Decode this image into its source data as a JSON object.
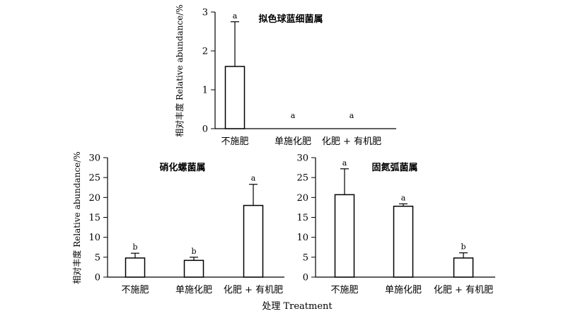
{
  "shared": {
    "ylabel": "相对丰度 Relative abundance/%",
    "xlabel": "处理 Treatment"
  },
  "chart_data": [
    {
      "type": "bar",
      "title": "拟色球蓝细菌属",
      "categories": [
        "不施肥",
        "单施化肥",
        "化肥 + 有机肥"
      ],
      "values": [
        1.6,
        0,
        0
      ],
      "errors": [
        1.15,
        0,
        0
      ],
      "significance": [
        "a",
        "a",
        "a"
      ],
      "ylim": [
        0,
        3
      ],
      "yticks": [
        "0",
        "1",
        "2",
        "3"
      ],
      "ylabel": "相对丰度 Relative abundance/%",
      "xlabel": ""
    },
    {
      "type": "bar",
      "title": "硝化螺菌属",
      "categories": [
        "不施肥",
        "单施化肥",
        "化肥 + 有机肥"
      ],
      "values": [
        4.8,
        4.2,
        18.0
      ],
      "errors": [
        1.2,
        0.8,
        5.3
      ],
      "significance": [
        "b",
        "b",
        "a"
      ],
      "ylim": [
        0,
        30
      ],
      "yticks": [
        "0",
        "5",
        "10",
        "15",
        "20",
        "25",
        "30"
      ],
      "ylabel": "相对丰度 Relative abundance/%",
      "xlabel": ""
    },
    {
      "type": "bar",
      "title": "固氮弧菌属",
      "categories": [
        "不施肥",
        "单施化肥",
        "化肥 + 有机肥"
      ],
      "values": [
        20.7,
        17.8,
        4.8
      ],
      "errors": [
        6.5,
        0.6,
        1.3
      ],
      "significance": [
        "a",
        "a",
        "b"
      ],
      "ylim": [
        0,
        30
      ],
      "yticks": [
        "0",
        "5",
        "10",
        "15",
        "20",
        "25",
        "30"
      ],
      "ylabel": "",
      "xlabel": ""
    }
  ]
}
